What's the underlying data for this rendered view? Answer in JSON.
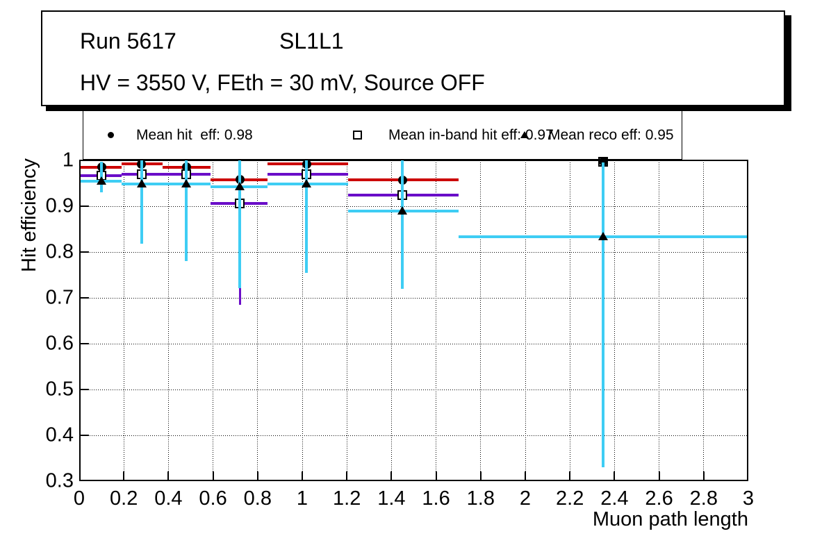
{
  "title_box": {
    "line1_left": "Run 5617",
    "line1_right": "SL1L1",
    "line2": "HV = 3550 V, FEth = 30 mV, Source OFF"
  },
  "chart_data": {
    "type": "errorbar",
    "title": "Run 5617 SL1L1",
    "x_axis": {
      "label": "Muon path length",
      "min": 0,
      "max": 3,
      "tick_values": [
        0,
        0.2,
        0.4,
        0.6,
        0.8,
        1,
        1.2,
        1.4,
        1.6,
        1.8,
        2,
        2.2,
        2.4,
        2.6,
        2.8,
        3
      ],
      "tick_labels": [
        "0",
        "0.2",
        "0.4",
        "0.6",
        "0.8",
        "1",
        "1.2",
        "1.4",
        "1.6",
        "1.8",
        "2",
        "2.2",
        "2.4",
        "2.6",
        "2.8",
        "3"
      ],
      "grid_values": [
        0.2,
        0.4,
        0.6,
        0.8,
        1,
        1.2,
        1.4,
        1.6,
        1.8,
        2,
        2.2,
        2.4,
        2.6,
        2.8
      ]
    },
    "y_axis": {
      "label": "Hit efficiency",
      "min": 0.3,
      "max": 1,
      "tick_values": [
        0.3,
        0.4,
        0.5,
        0.6,
        0.7,
        0.8,
        0.9,
        1
      ],
      "tick_labels": [
        "0.3",
        "0.4",
        "0.5",
        "0.6",
        "0.7",
        "0.8",
        "0.9",
        "1"
      ],
      "grid_values": [
        0.4,
        0.5,
        0.6,
        0.7,
        0.8,
        0.9
      ]
    },
    "grid": true,
    "legend_position": "top",
    "series": [
      {
        "name": "Mean hit  eff: 0.98",
        "mean_value": 0.98,
        "marker": "filled-circle",
        "marker_color": "#000000",
        "line_color": "#cc0000",
        "points": [
          {
            "x": 0.1,
            "y": 0.985,
            "xlow": 0.005,
            "xhigh": 0.19,
            "ylow": 0.975,
            "yhigh": 0.995
          },
          {
            "x": 0.28,
            "y": 0.992,
            "xlow": 0.19,
            "xhigh": 0.375,
            "ylow": 0.982,
            "yhigh": 1.0
          },
          {
            "x": 0.48,
            "y": 0.985,
            "xlow": 0.375,
            "xhigh": 0.59,
            "ylow": 0.975,
            "yhigh": 0.995
          },
          {
            "x": 0.72,
            "y": 0.958,
            "xlow": 0.59,
            "xhigh": 0.845,
            "ylow": 0.948,
            "yhigh": 0.968
          },
          {
            "x": 1.02,
            "y": 0.992,
            "xlow": 0.845,
            "xhigh": 1.205,
            "ylow": 0.982,
            "yhigh": 1.0
          },
          {
            "x": 1.45,
            "y": 0.957,
            "xlow": 1.205,
            "xhigh": 1.7,
            "ylow": 0.947,
            "yhigh": 0.967
          },
          {
            "x": 2.35,
            "y": 0.997,
            "xlow": null,
            "xhigh": null,
            "ylow": null,
            "yhigh": null
          }
        ]
      },
      {
        "name": "Mean in-band hit eff: 0.97",
        "mean_value": 0.97,
        "marker": "open-square",
        "marker_color": "#000000",
        "line_color": "#6a0dc8",
        "points": [
          {
            "x": 0.1,
            "y": 0.967,
            "xlow": 0.005,
            "xhigh": 0.19,
            "ylow": null,
            "yhigh": null
          },
          {
            "x": 0.28,
            "y": 0.969,
            "xlow": 0.19,
            "xhigh": 0.375,
            "ylow": null,
            "yhigh": null
          },
          {
            "x": 0.48,
            "y": 0.969,
            "xlow": 0.375,
            "xhigh": 0.59,
            "ylow": null,
            "yhigh": null
          },
          {
            "x": 0.72,
            "y": 0.906,
            "xlow": 0.59,
            "xhigh": 0.845,
            "ylow": 0.685,
            "yhigh": 1.0
          },
          {
            "x": 1.02,
            "y": 0.969,
            "xlow": 0.845,
            "xhigh": 1.205,
            "ylow": null,
            "yhigh": null
          },
          {
            "x": 1.45,
            "y": 0.925,
            "xlow": 1.205,
            "xhigh": 1.7,
            "ylow": null,
            "yhigh": null
          },
          {
            "x": 2.35,
            "y": 0.997,
            "xlow": null,
            "xhigh": null,
            "ylow": null,
            "yhigh": null,
            "hollow": true
          }
        ]
      },
      {
        "name": "Mean reco eff: 0.95",
        "mean_value": 0.95,
        "marker": "filled-triangle",
        "marker_color": "#000000",
        "line_color": "#3ecdf4",
        "points": [
          {
            "x": 0.1,
            "y": 0.954,
            "xlow": 0.005,
            "xhigh": 0.19,
            "ylow": 0.93,
            "yhigh": 0.997
          },
          {
            "x": 0.28,
            "y": 0.949,
            "xlow": 0.19,
            "xhigh": 0.375,
            "ylow": 0.818,
            "yhigh": 1.0
          },
          {
            "x": 0.48,
            "y": 0.948,
            "xlow": 0.375,
            "xhigh": 0.59,
            "ylow": 0.78,
            "yhigh": 1.0
          },
          {
            "x": 0.72,
            "y": 0.943,
            "xlow": 0.59,
            "xhigh": 0.845,
            "ylow": 0.721,
            "yhigh": 1.0
          },
          {
            "x": 1.02,
            "y": 0.949,
            "xlow": 0.845,
            "xhigh": 1.205,
            "ylow": 0.755,
            "yhigh": 1.0
          },
          {
            "x": 1.45,
            "y": 0.89,
            "xlow": 1.205,
            "xhigh": 1.7,
            "ylow": 0.72,
            "yhigh": 1.0
          },
          {
            "x": 2.35,
            "y": 0.834,
            "xlow": 1.7,
            "xhigh": 3.0,
            "ylow": 0.33,
            "yhigh": 0.995
          }
        ]
      }
    ]
  }
}
